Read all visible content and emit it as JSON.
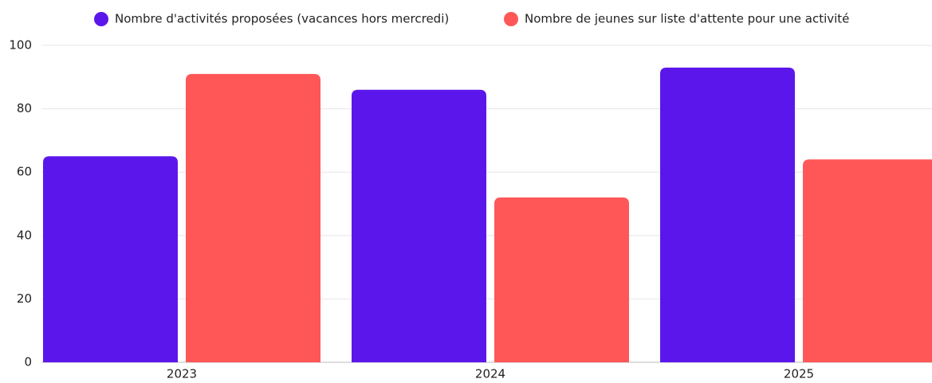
{
  "chart_data": {
    "type": "bar",
    "categories": [
      "2023",
      "2024",
      "2025"
    ],
    "series": [
      {
        "name": "Nombre d'activités proposées (vacances hors mercredi)",
        "color": "#5b17eb",
        "values": [
          65,
          86,
          93
        ]
      },
      {
        "name": "Nombre de jeunes sur liste d'attente pour une activité",
        "color": "#ff5757",
        "values": [
          91,
          52,
          64
        ]
      }
    ],
    "ylim": [
      0,
      100
    ],
    "yticks": [
      0,
      20,
      40,
      60,
      80,
      100
    ],
    "grid": true,
    "legend": "top"
  }
}
